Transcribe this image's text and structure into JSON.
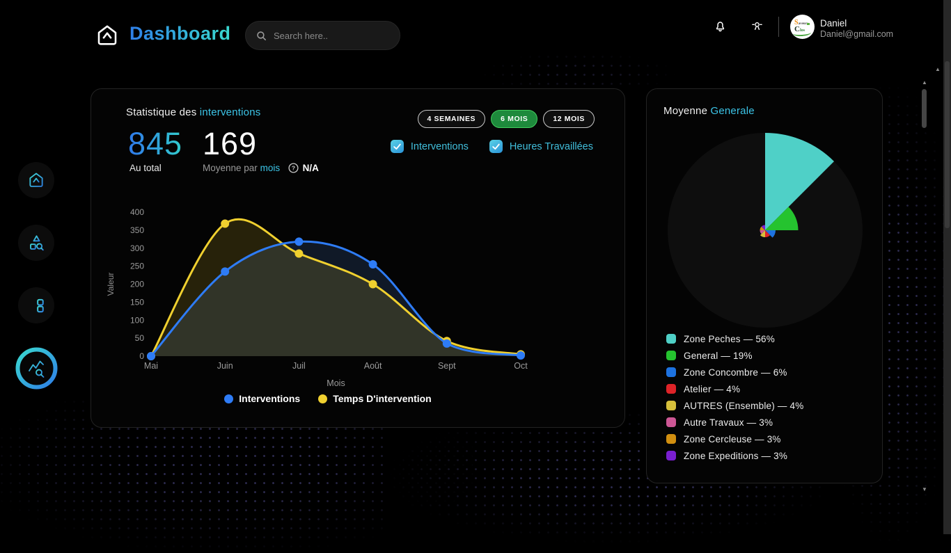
{
  "navbar": {
    "title": "Dashboard",
    "search_placeholder": "Search here..",
    "user_name": "Daniel",
    "user_email": "Daniel@gmail.com",
    "avatar_text_1": "S",
    "avatar_text_1b": "aveurs",
    "avatar_text_2": "C",
    "avatar_text_2b": "los"
  },
  "sidebar": {
    "items": [
      {
        "icon": "home-icon",
        "active": false
      },
      {
        "icon": "shapes-search-icon",
        "active": false
      },
      {
        "icon": "list-icon",
        "active": false
      },
      {
        "icon": "analytics-search-icon",
        "active": true
      }
    ]
  },
  "stats_card": {
    "title_prefix": "Statistique des",
    "title_accent": "interventions",
    "total_value": "845",
    "total_label": "Au total",
    "avg_value": "169",
    "avg_label_prefix": "Moyenne par",
    "avg_label_accent": "mois",
    "avg_badge": "N/A",
    "range_buttons": [
      {
        "label": "4 SEMAINES",
        "active": false
      },
      {
        "label": "6 MOIS",
        "active": true
      },
      {
        "label": "12 MOIS",
        "active": false
      }
    ],
    "checkboxes": [
      {
        "label": "Interventions",
        "checked": true
      },
      {
        "label": "Heures Travaillées",
        "checked": true
      }
    ]
  },
  "pie_card": {
    "title_prefix": "Moyenne",
    "title_accent": "Generale"
  },
  "chart_data": [
    {
      "type": "line",
      "x": [
        "Mai",
        "Juin",
        "Juil",
        "Août",
        "Sept",
        "Oct"
      ],
      "series": [
        {
          "name": "Interventions",
          "color": "#2e7cf6",
          "fill": "rgba(70,120,200,0.18)",
          "values": [
            0,
            235,
            318,
            255,
            35,
            2
          ]
        },
        {
          "name": "Temps D'intervention",
          "color": "#f0d02f",
          "fill": "rgba(240,208,47,0.15)",
          "values": [
            0,
            368,
            285,
            200,
            42,
            5
          ]
        }
      ],
      "title": "",
      "xlabel": "Mois",
      "ylabel": "Valeur",
      "ylim": [
        0,
        400
      ],
      "ytick_step": 50,
      "grid": false,
      "smooth": true,
      "area_fill": true,
      "legend_position": "bottom"
    },
    {
      "type": "pie",
      "style": "polar-area-equal-angles",
      "categories": [
        "Zone Peches",
        "General",
        "Zone Concombre",
        "Atelier",
        "AUTRES (Ensemble)",
        "Autre Travaux",
        "Zone Cercleuse",
        "Zone Expeditions"
      ],
      "values": [
        56,
        19,
        6,
        4,
        4,
        3,
        3,
        3
      ],
      "unit": "%",
      "colors": [
        "#4fd0c7",
        "#25c32f",
        "#1d72e0",
        "#de2328",
        "#d6bf3b",
        "#cd5795",
        "#d18f10",
        "#7a1fd0"
      ],
      "legend_separator": "—",
      "legend_position": "bottom",
      "background_circle_color": "#0e0e0e"
    }
  ]
}
